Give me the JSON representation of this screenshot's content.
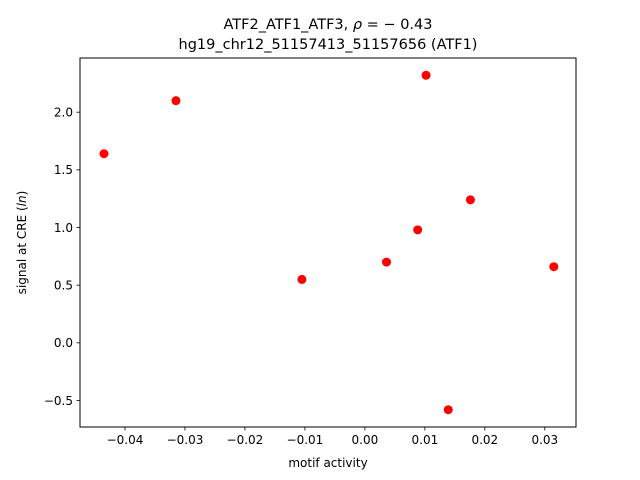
{
  "chart_data": {
    "type": "scatter",
    "title_line1_prefix": "ATF2_ATF1_ATF3, ",
    "title_line1_rho": "ρ",
    "title_line1_suffix": " = − 0.43",
    "title_line2": "hg19_chr12_51157413_51157656 (ATF1)",
    "xlabel": "motif activity",
    "ylabel_prefix": "signal at CRE (",
    "ylabel_italic": "ln",
    "ylabel_suffix": ")",
    "xlim": [
      -0.0475,
      0.0352
    ],
    "ylim": [
      -0.73,
      2.47
    ],
    "xticks": [
      -0.04,
      -0.03,
      -0.02,
      -0.01,
      0.0,
      0.01,
      0.02,
      0.03
    ],
    "xtick_labels": [
      "−0.04",
      "−0.03",
      "−0.02",
      "−0.01",
      "0.00",
      "0.01",
      "0.02",
      "0.03"
    ],
    "yticks": [
      -0.5,
      0.0,
      0.5,
      1.0,
      1.5,
      2.0
    ],
    "ytick_labels": [
      "−0.5",
      "0.0",
      "0.5",
      "1.0",
      "1.5",
      "2.0"
    ],
    "grid": false,
    "marker_color": "#ff0000",
    "points": [
      {
        "x": -0.0435,
        "y": 1.64
      },
      {
        "x": -0.0315,
        "y": 2.1
      },
      {
        "x": -0.0105,
        "y": 0.55
      },
      {
        "x": 0.0036,
        "y": 0.7
      },
      {
        "x": 0.0088,
        "y": 0.98
      },
      {
        "x": 0.0102,
        "y": 2.32
      },
      {
        "x": 0.0139,
        "y": -0.58
      },
      {
        "x": 0.0176,
        "y": 1.24
      },
      {
        "x": 0.0315,
        "y": 0.66
      }
    ]
  }
}
